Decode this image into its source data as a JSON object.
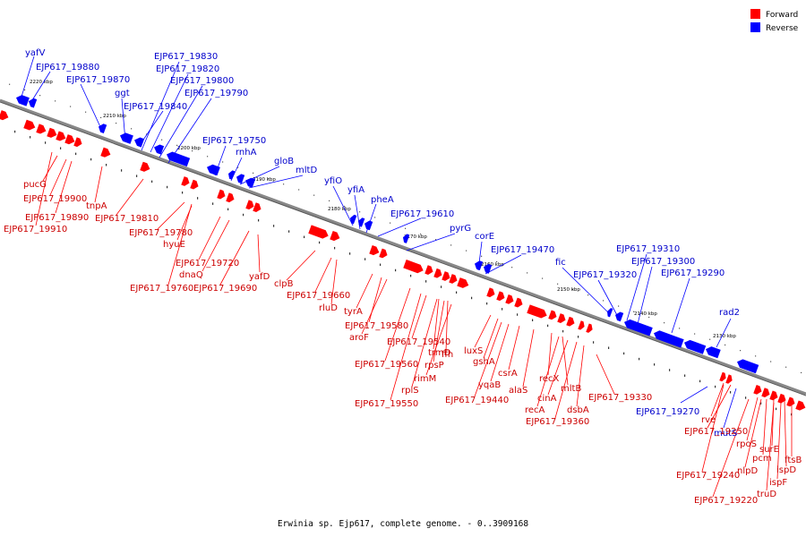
{
  "legend": {
    "forward_label": "Forward",
    "reverse_label": "Reverse",
    "forward_color": "#ff0000",
    "reverse_color": "#0000ff"
  },
  "caption": "Erwinia sp. Ejp617, complete genome. - 0..3909168",
  "strand_colors": {
    "forward": "#ff0000",
    "reverse": "#0000ff",
    "axis": "#888888"
  },
  "axis_ticks": [
    "2220 kbp",
    "2210 kbp",
    "2200 kbp",
    "2190 kbp",
    "2180 kbp",
    "2170 kbp",
    "2160 kbp",
    "2150 kbp",
    "2140 kbp",
    "2130 kbp"
  ],
  "reverse_labels": [
    "yafV",
    "EJP617_19880",
    "EJP617_19870",
    "ggt",
    "EJP617_19840",
    "EJP617_19830",
    "EJP617_19820",
    "EJP617_19800",
    "EJP617_19790",
    "EJP617_19750",
    "rnhA",
    "gloB",
    "mltD",
    "yfiO",
    "yfiA",
    "pheA",
    "EJP617_19610",
    "pyrG",
    "corE",
    "EJP617_19470",
    "fic",
    "EJP617_19320",
    "EJP617_19310",
    "EJP617_19300",
    "EJP617_19290",
    "rad2",
    "EJP617_19270",
    "mutS"
  ],
  "forward_labels": [
    "pucG",
    "EJP617_19900",
    "EJP617_19890",
    "EJP617_19910",
    "tnpA",
    "EJP617_19810",
    "EJP617_19780",
    "hyuE",
    "EJP617_19720",
    "dnaQ",
    "EJP617_19760",
    "EJP617_19690",
    "yafD",
    "clpB",
    "EJP617_19660",
    "rluD",
    "tyrA",
    "EJP617_19580",
    "aroF",
    "EJP617_19540",
    "trmD",
    "ffh",
    "EJP617_19560",
    "rpsP",
    "rimM",
    "rplS",
    "EJP617_19550",
    "luxS",
    "gshA",
    "csrA",
    "yqaB",
    "alaS",
    "recX",
    "mltB",
    "EJP617_19440",
    "cinA",
    "recA",
    "dsbA",
    "EJP617_19360",
    "EJP617_19330",
    "rve",
    "EJP617_19250",
    "rpoS",
    "surE",
    "pcm",
    "nlpD",
    "ftsB",
    "ispD",
    "EJP617_19240",
    "ispF",
    "truD",
    "EJP617_19220"
  ]
}
